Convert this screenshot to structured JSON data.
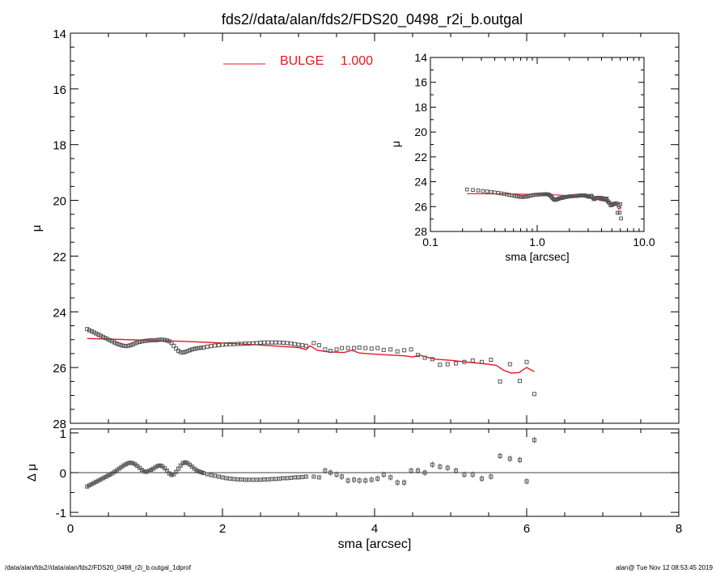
{
  "title": "fds2//data/alan/fds2/FDS20_0498_r2i_b.outgal",
  "footer": {
    "left": "/data/alan/fds2//data/alan/fds2/FDS20_0498_r2i_b.outgal_1dprof",
    "right": "alan@  Tue Nov 12 08:53:45 2019"
  },
  "colors": {
    "model": "#e8161e",
    "data": "#555555",
    "axis": "#000000"
  },
  "chart_data": [
    {
      "type": "scatter",
      "panel": "main",
      "xlabel": "",
      "ylabel": "μ",
      "xlim": [
        0,
        8
      ],
      "ylim": [
        28,
        14
      ],
      "yticks": [
        14,
        16,
        18,
        20,
        22,
        24,
        26,
        28
      ],
      "legend": {
        "label": "BULGE",
        "value": "1.000",
        "placement": "top"
      },
      "series": [
        {
          "name": "data",
          "marker": "square",
          "x": [
            0.22,
            0.25,
            0.28,
            0.31,
            0.34,
            0.37,
            0.4,
            0.43,
            0.46,
            0.49,
            0.52,
            0.55,
            0.58,
            0.61,
            0.64,
            0.67,
            0.7,
            0.73,
            0.76,
            0.79,
            0.82,
            0.85,
            0.88,
            0.91,
            0.94,
            0.97,
            1.0,
            1.03,
            1.06,
            1.09,
            1.12,
            1.15,
            1.18,
            1.21,
            1.24,
            1.27,
            1.3,
            1.33,
            1.36,
            1.39,
            1.42,
            1.45,
            1.48,
            1.51,
            1.54,
            1.57,
            1.6,
            1.63,
            1.66,
            1.69,
            1.72,
            1.75,
            1.8,
            1.85,
            1.9,
            1.95,
            2.0,
            2.05,
            2.1,
            2.15,
            2.2,
            2.25,
            2.3,
            2.35,
            2.4,
            2.45,
            2.5,
            2.55,
            2.6,
            2.65,
            2.7,
            2.75,
            2.8,
            2.85,
            2.9,
            2.95,
            3.0,
            3.05,
            3.1,
            3.2,
            3.27,
            3.35,
            3.42,
            3.5,
            3.57,
            3.65,
            3.73,
            3.8,
            3.88,
            3.96,
            4.04,
            4.12,
            4.21,
            4.3,
            4.39,
            4.48,
            4.57,
            4.66,
            4.76,
            4.86,
            4.96,
            5.07,
            5.18,
            5.29,
            5.41,
            5.53,
            5.65,
            5.78,
            5.91,
            6.0,
            6.1
          ],
          "y": [
            24.62,
            24.66,
            24.7,
            24.74,
            24.78,
            24.82,
            24.86,
            24.9,
            24.94,
            24.98,
            25.02,
            25.06,
            25.1,
            25.14,
            25.17,
            25.2,
            25.22,
            25.23,
            25.22,
            25.2,
            25.17,
            25.13,
            25.1,
            25.08,
            25.06,
            25.05,
            25.04,
            25.03,
            25.02,
            25.02,
            25.02,
            25.01,
            25.0,
            25.0,
            25.01,
            25.03,
            25.06,
            25.12,
            25.22,
            25.32,
            25.4,
            25.45,
            25.46,
            25.44,
            25.41,
            25.38,
            25.35,
            25.33,
            25.31,
            25.3,
            25.29,
            25.28,
            25.25,
            25.23,
            25.21,
            25.2,
            25.18,
            25.17,
            25.16,
            25.16,
            25.15,
            25.15,
            25.14,
            25.14,
            25.13,
            25.12,
            25.11,
            25.1,
            25.1,
            25.1,
            25.1,
            25.1,
            25.11,
            25.12,
            25.14,
            25.16,
            25.18,
            25.2,
            25.22,
            25.12,
            25.2,
            25.35,
            25.4,
            25.35,
            25.3,
            25.3,
            25.3,
            25.28,
            25.3,
            25.32,
            25.3,
            25.37,
            25.35,
            25.42,
            25.38,
            25.35,
            25.55,
            25.65,
            25.7,
            25.9,
            25.88,
            25.85,
            25.8,
            25.75,
            25.8,
            25.72,
            26.5,
            25.88,
            26.48,
            25.8,
            26.95
          ]
        },
        {
          "name": "BULGE",
          "line": true,
          "x": [
            0.22,
            0.5,
            1.0,
            1.5,
            2.0,
            2.5,
            3.0,
            3.1,
            3.15,
            3.25,
            3.3,
            3.4,
            3.5,
            3.6,
            3.7,
            3.8,
            3.9,
            4.0,
            4.2,
            4.4,
            4.5,
            4.6,
            4.7,
            4.8,
            5.0,
            5.2,
            5.4,
            5.6,
            5.7,
            5.8,
            5.9,
            6.0,
            6.1
          ],
          "y": [
            24.96,
            24.98,
            25.02,
            25.06,
            25.12,
            25.19,
            25.28,
            25.35,
            25.22,
            25.38,
            25.4,
            25.44,
            25.45,
            25.46,
            25.38,
            25.48,
            25.5,
            25.52,
            25.55,
            25.58,
            25.62,
            25.56,
            25.64,
            25.7,
            25.74,
            25.8,
            25.85,
            25.92,
            26.1,
            26.2,
            26.18,
            26.0,
            26.15
          ]
        }
      ]
    },
    {
      "type": "scatter",
      "panel": "residual",
      "xlabel": "sma [arcsec]",
      "ylabel": "Δ μ",
      "xlim": [
        0,
        8
      ],
      "ylim": [
        -1.1,
        1.1
      ],
      "xticks": [
        0,
        2,
        4,
        6,
        8
      ],
      "yticks": [
        -1,
        0,
        1
      ],
      "zero_line": true,
      "series": [
        {
          "name": "residual",
          "marker": "square-errorbar",
          "x": [
            0.22,
            0.25,
            0.28,
            0.31,
            0.34,
            0.37,
            0.4,
            0.43,
            0.46,
            0.49,
            0.52,
            0.55,
            0.58,
            0.61,
            0.64,
            0.67,
            0.7,
            0.73,
            0.76,
            0.79,
            0.82,
            0.85,
            0.88,
            0.91,
            0.94,
            0.97,
            1.0,
            1.03,
            1.06,
            1.09,
            1.12,
            1.15,
            1.18,
            1.21,
            1.24,
            1.27,
            1.3,
            1.33,
            1.36,
            1.39,
            1.42,
            1.45,
            1.48,
            1.51,
            1.54,
            1.57,
            1.6,
            1.63,
            1.66,
            1.69,
            1.72,
            1.75,
            1.8,
            1.85,
            1.9,
            1.95,
            2.0,
            2.05,
            2.1,
            2.15,
            2.2,
            2.25,
            2.3,
            2.35,
            2.4,
            2.45,
            2.5,
            2.55,
            2.6,
            2.65,
            2.7,
            2.75,
            2.8,
            2.85,
            2.9,
            2.95,
            3.0,
            3.05,
            3.1,
            3.2,
            3.27,
            3.35,
            3.42,
            3.5,
            3.57,
            3.65,
            3.73,
            3.8,
            3.88,
            3.96,
            4.04,
            4.12,
            4.21,
            4.3,
            4.39,
            4.48,
            4.57,
            4.66,
            4.76,
            4.86,
            4.96,
            5.07,
            5.18,
            5.29,
            5.41,
            5.53,
            5.65,
            5.78,
            5.91,
            6.0,
            6.1
          ],
          "y": [
            -0.35,
            -0.32,
            -0.29,
            -0.26,
            -0.23,
            -0.2,
            -0.17,
            -0.14,
            -0.11,
            -0.08,
            -0.05,
            -0.02,
            0.02,
            0.06,
            0.1,
            0.14,
            0.18,
            0.21,
            0.24,
            0.25,
            0.24,
            0.21,
            0.17,
            0.12,
            0.07,
            0.03,
            0.02,
            0.04,
            0.07,
            0.1,
            0.14,
            0.17,
            0.18,
            0.16,
            0.11,
            0.05,
            -0.02,
            -0.06,
            -0.04,
            0.02,
            0.1,
            0.18,
            0.24,
            0.26,
            0.24,
            0.2,
            0.15,
            0.1,
            0.06,
            0.03,
            0.01,
            -0.01,
            -0.04,
            -0.06,
            -0.08,
            -0.1,
            -0.12,
            -0.14,
            -0.15,
            -0.16,
            -0.17,
            -0.17,
            -0.18,
            -0.18,
            -0.18,
            -0.18,
            -0.18,
            -0.17,
            -0.17,
            -0.16,
            -0.16,
            -0.15,
            -0.14,
            -0.14,
            -0.13,
            -0.12,
            -0.12,
            -0.11,
            -0.1,
            -0.1,
            -0.12,
            0.05,
            0.0,
            -0.05,
            -0.1,
            -0.2,
            -0.18,
            -0.2,
            -0.2,
            -0.18,
            -0.15,
            -0.05,
            -0.12,
            -0.25,
            -0.25,
            0.05,
            0.05,
            0.0,
            0.2,
            0.15,
            0.12,
            0.05,
            -0.05,
            -0.05,
            -0.15,
            -0.1,
            0.42,
            0.35,
            0.32,
            -0.22,
            0.82
          ]
        }
      ]
    },
    {
      "type": "scatter",
      "panel": "inset",
      "xlabel": "sma [arcsec]",
      "ylabel": "μ",
      "xscale": "log",
      "xlim": [
        0.1,
        10
      ],
      "ylim": [
        28,
        14
      ],
      "xtick_labels": [
        "0.1",
        "1.0",
        "10.0"
      ],
      "yticks": [
        14,
        16,
        18,
        20,
        22,
        24,
        26,
        28
      ],
      "series": [
        {
          "name": "data",
          "marker": "square",
          "x": [
            0.22,
            0.25,
            0.28,
            0.31,
            0.34,
            0.37,
            0.4,
            0.43,
            0.46,
            0.49,
            0.52,
            0.55,
            0.58,
            0.61,
            0.64,
            0.67,
            0.7,
            0.73,
            0.76,
            0.79,
            0.82,
            0.85,
            0.88,
            0.91,
            0.94,
            0.97,
            1.0,
            1.03,
            1.06,
            1.09,
            1.12,
            1.15,
            1.18,
            1.21,
            1.24,
            1.27,
            1.3,
            1.33,
            1.36,
            1.39,
            1.42,
            1.45,
            1.48,
            1.51,
            1.54,
            1.57,
            1.6,
            1.63,
            1.66,
            1.69,
            1.72,
            1.75,
            1.8,
            1.85,
            1.9,
            1.95,
            2.0,
            2.05,
            2.1,
            2.15,
            2.2,
            2.25,
            2.3,
            2.35,
            2.4,
            2.45,
            2.5,
            2.55,
            2.6,
            2.65,
            2.7,
            2.75,
            2.8,
            2.85,
            2.9,
            2.95,
            3.0,
            3.05,
            3.1,
            3.2,
            3.27,
            3.35,
            3.42,
            3.5,
            3.57,
            3.65,
            3.73,
            3.8,
            3.88,
            3.96,
            4.04,
            4.12,
            4.21,
            4.3,
            4.39,
            4.48,
            4.57,
            4.66,
            4.76,
            4.86,
            4.96,
            5.07,
            5.18,
            5.29,
            5.41,
            5.53,
            5.65,
            5.78,
            5.91,
            6.0,
            6.1
          ],
          "y": [
            24.62,
            24.66,
            24.7,
            24.74,
            24.78,
            24.82,
            24.86,
            24.9,
            24.94,
            24.98,
            25.02,
            25.06,
            25.1,
            25.14,
            25.17,
            25.2,
            25.22,
            25.23,
            25.22,
            25.2,
            25.17,
            25.13,
            25.1,
            25.08,
            25.06,
            25.05,
            25.04,
            25.03,
            25.02,
            25.02,
            25.02,
            25.01,
            25.0,
            25.0,
            25.01,
            25.03,
            25.06,
            25.12,
            25.22,
            25.32,
            25.4,
            25.45,
            25.46,
            25.44,
            25.41,
            25.38,
            25.35,
            25.33,
            25.31,
            25.3,
            25.29,
            25.28,
            25.25,
            25.23,
            25.21,
            25.2,
            25.18,
            25.17,
            25.16,
            25.16,
            25.15,
            25.15,
            25.14,
            25.14,
            25.13,
            25.12,
            25.11,
            25.1,
            25.1,
            25.1,
            25.1,
            25.1,
            25.11,
            25.12,
            25.14,
            25.16,
            25.18,
            25.2,
            25.22,
            25.12,
            25.2,
            25.35,
            25.4,
            25.35,
            25.3,
            25.3,
            25.3,
            25.28,
            25.3,
            25.32,
            25.3,
            25.37,
            25.35,
            25.42,
            25.38,
            25.35,
            25.55,
            25.65,
            25.7,
            25.9,
            25.88,
            25.85,
            25.8,
            25.75,
            25.8,
            25.72,
            26.5,
            25.88,
            26.48,
            25.8,
            26.95
          ]
        },
        {
          "name": "BULGE",
          "line": true,
          "x": [
            0.22,
            0.5,
            1.0,
            1.5,
            2.0,
            2.5,
            3.0,
            3.1,
            3.15,
            3.25,
            3.3,
            3.4,
            3.5,
            3.6,
            3.7,
            3.8,
            3.9,
            4.0,
            4.2,
            4.4,
            4.5,
            4.6,
            4.7,
            4.8,
            5.0,
            5.2,
            5.4,
            5.6,
            5.7,
            5.8,
            5.9,
            6.0,
            6.1
          ],
          "y": [
            24.96,
            24.98,
            25.02,
            25.06,
            25.12,
            25.19,
            25.28,
            25.35,
            25.22,
            25.38,
            25.4,
            25.44,
            25.45,
            25.46,
            25.38,
            25.48,
            25.5,
            25.52,
            25.55,
            25.58,
            25.62,
            25.56,
            25.64,
            25.7,
            25.74,
            25.8,
            25.85,
            25.92,
            26.1,
            26.2,
            26.18,
            26.0,
            26.15
          ]
        }
      ]
    }
  ]
}
